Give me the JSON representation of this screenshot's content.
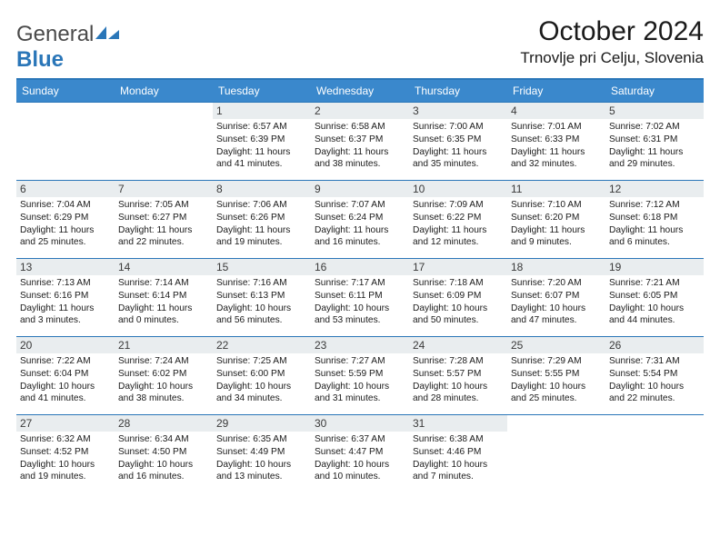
{
  "brand": {
    "part1": "General",
    "part2": "Blue"
  },
  "title": "October 2024",
  "location": "Trnovlje pri Celju, Slovenia",
  "colors": {
    "header_bg": "#3a88cc",
    "rule": "#2a76b8",
    "daynum_bg": "#e9edef"
  },
  "dow": [
    "Sunday",
    "Monday",
    "Tuesday",
    "Wednesday",
    "Thursday",
    "Friday",
    "Saturday"
  ],
  "leading_blanks": 2,
  "days": [
    {
      "n": 1,
      "sunrise": "6:57 AM",
      "sunset": "6:39 PM",
      "daylight": "11 hours and 41 minutes."
    },
    {
      "n": 2,
      "sunrise": "6:58 AM",
      "sunset": "6:37 PM",
      "daylight": "11 hours and 38 minutes."
    },
    {
      "n": 3,
      "sunrise": "7:00 AM",
      "sunset": "6:35 PM",
      "daylight": "11 hours and 35 minutes."
    },
    {
      "n": 4,
      "sunrise": "7:01 AM",
      "sunset": "6:33 PM",
      "daylight": "11 hours and 32 minutes."
    },
    {
      "n": 5,
      "sunrise": "7:02 AM",
      "sunset": "6:31 PM",
      "daylight": "11 hours and 29 minutes."
    },
    {
      "n": 6,
      "sunrise": "7:04 AM",
      "sunset": "6:29 PM",
      "daylight": "11 hours and 25 minutes."
    },
    {
      "n": 7,
      "sunrise": "7:05 AM",
      "sunset": "6:27 PM",
      "daylight": "11 hours and 22 minutes."
    },
    {
      "n": 8,
      "sunrise": "7:06 AM",
      "sunset": "6:26 PM",
      "daylight": "11 hours and 19 minutes."
    },
    {
      "n": 9,
      "sunrise": "7:07 AM",
      "sunset": "6:24 PM",
      "daylight": "11 hours and 16 minutes."
    },
    {
      "n": 10,
      "sunrise": "7:09 AM",
      "sunset": "6:22 PM",
      "daylight": "11 hours and 12 minutes."
    },
    {
      "n": 11,
      "sunrise": "7:10 AM",
      "sunset": "6:20 PM",
      "daylight": "11 hours and 9 minutes."
    },
    {
      "n": 12,
      "sunrise": "7:12 AM",
      "sunset": "6:18 PM",
      "daylight": "11 hours and 6 minutes."
    },
    {
      "n": 13,
      "sunrise": "7:13 AM",
      "sunset": "6:16 PM",
      "daylight": "11 hours and 3 minutes."
    },
    {
      "n": 14,
      "sunrise": "7:14 AM",
      "sunset": "6:14 PM",
      "daylight": "11 hours and 0 minutes."
    },
    {
      "n": 15,
      "sunrise": "7:16 AM",
      "sunset": "6:13 PM",
      "daylight": "10 hours and 56 minutes."
    },
    {
      "n": 16,
      "sunrise": "7:17 AM",
      "sunset": "6:11 PM",
      "daylight": "10 hours and 53 minutes."
    },
    {
      "n": 17,
      "sunrise": "7:18 AM",
      "sunset": "6:09 PM",
      "daylight": "10 hours and 50 minutes."
    },
    {
      "n": 18,
      "sunrise": "7:20 AM",
      "sunset": "6:07 PM",
      "daylight": "10 hours and 47 minutes."
    },
    {
      "n": 19,
      "sunrise": "7:21 AM",
      "sunset": "6:05 PM",
      "daylight": "10 hours and 44 minutes."
    },
    {
      "n": 20,
      "sunrise": "7:22 AM",
      "sunset": "6:04 PM",
      "daylight": "10 hours and 41 minutes."
    },
    {
      "n": 21,
      "sunrise": "7:24 AM",
      "sunset": "6:02 PM",
      "daylight": "10 hours and 38 minutes."
    },
    {
      "n": 22,
      "sunrise": "7:25 AM",
      "sunset": "6:00 PM",
      "daylight": "10 hours and 34 minutes."
    },
    {
      "n": 23,
      "sunrise": "7:27 AM",
      "sunset": "5:59 PM",
      "daylight": "10 hours and 31 minutes."
    },
    {
      "n": 24,
      "sunrise": "7:28 AM",
      "sunset": "5:57 PM",
      "daylight": "10 hours and 28 minutes."
    },
    {
      "n": 25,
      "sunrise": "7:29 AM",
      "sunset": "5:55 PM",
      "daylight": "10 hours and 25 minutes."
    },
    {
      "n": 26,
      "sunrise": "7:31 AM",
      "sunset": "5:54 PM",
      "daylight": "10 hours and 22 minutes."
    },
    {
      "n": 27,
      "sunrise": "6:32 AM",
      "sunset": "4:52 PM",
      "daylight": "10 hours and 19 minutes."
    },
    {
      "n": 28,
      "sunrise": "6:34 AM",
      "sunset": "4:50 PM",
      "daylight": "10 hours and 16 minutes."
    },
    {
      "n": 29,
      "sunrise": "6:35 AM",
      "sunset": "4:49 PM",
      "daylight": "10 hours and 13 minutes."
    },
    {
      "n": 30,
      "sunrise": "6:37 AM",
      "sunset": "4:47 PM",
      "daylight": "10 hours and 10 minutes."
    },
    {
      "n": 31,
      "sunrise": "6:38 AM",
      "sunset": "4:46 PM",
      "daylight": "10 hours and 7 minutes."
    }
  ],
  "labels": {
    "sunrise": "Sunrise:",
    "sunset": "Sunset:",
    "daylight": "Daylight:"
  }
}
